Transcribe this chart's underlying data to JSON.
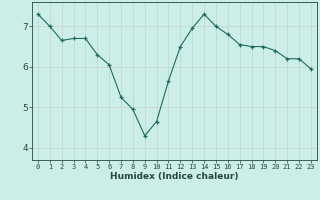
{
  "x": [
    0,
    1,
    2,
    3,
    4,
    5,
    6,
    7,
    8,
    9,
    10,
    11,
    12,
    13,
    14,
    15,
    16,
    17,
    18,
    19,
    20,
    21,
    22,
    23
  ],
  "y": [
    7.3,
    7.0,
    6.65,
    6.7,
    6.7,
    6.3,
    6.05,
    5.25,
    4.95,
    4.3,
    4.65,
    5.65,
    6.5,
    6.95,
    7.3,
    7.0,
    6.8,
    6.55,
    6.5,
    6.5,
    6.4,
    6.2,
    6.2,
    5.95
  ],
  "line_color": "#1e6b5e",
  "bg_color": "#cceee8",
  "grid_color": "#c8d8d4",
  "xlabel": "Humidex (Indice chaleur)",
  "ylim": [
    3.7,
    7.6
  ],
  "xlim": [
    -0.5,
    23.5
  ],
  "yticks": [
    4,
    5,
    6,
    7
  ],
  "xticks": [
    0,
    1,
    2,
    3,
    4,
    5,
    6,
    7,
    8,
    9,
    10,
    11,
    12,
    13,
    14,
    15,
    16,
    17,
    18,
    19,
    20,
    21,
    22,
    23
  ],
  "text_color": "#1e4a42",
  "xlabel_fontsize": 6.5,
  "xtick_fontsize": 5.0,
  "ytick_fontsize": 6.5
}
